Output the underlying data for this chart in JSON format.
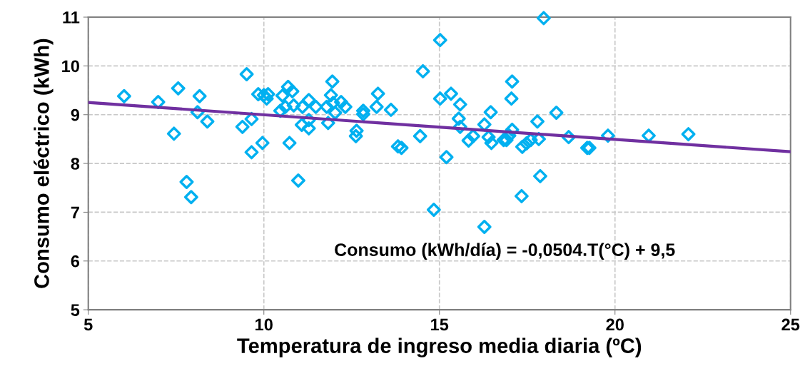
{
  "chart_data": {
    "type": "scatter",
    "xlabel": "Temperatura de ingreso media diaria (ºC)",
    "ylabel": "Consumo eléctrico (kWh)",
    "xlim": [
      5,
      25
    ],
    "xticks": [
      5,
      10,
      15,
      20,
      25
    ],
    "ylim": [
      5,
      11
    ],
    "yticks": [
      5,
      6,
      7,
      8,
      9,
      10,
      11
    ],
    "grid": true,
    "legend": false,
    "annotations": [
      "Consumo (kWh/día) = -0,0504.T(°C) + 9,5"
    ],
    "series": [
      {
        "color": "#00b0f0",
        "marker": "diamond",
        "x": [
          6.02,
          6.99,
          7.56,
          7.44,
          7.8,
          7.93,
          8.17,
          8.11,
          8.39,
          9.51,
          9.39,
          9.65,
          9.65,
          9.84,
          9.96,
          10.0,
          10.08,
          10.12,
          10.47,
          10.53,
          10.69,
          10.61,
          10.81,
          10.73,
          10.85,
          10.98,
          11.08,
          11.1,
          11.28,
          11.28,
          11.28,
          11.48,
          11.79,
          11.83,
          11.91,
          11.95,
          11.97,
          12.03,
          12.2,
          12.32,
          12.64,
          12.62,
          12.83,
          12.83,
          13.21,
          13.25,
          13.62,
          13.82,
          13.92,
          14.53,
          14.45,
          14.84,
          15.02,
          15.02,
          15.2,
          15.33,
          15.59,
          15.55,
          15.59,
          15.83,
          15.96,
          16.46,
          16.28,
          16.4,
          16.48,
          16.28,
          16.83,
          16.91,
          16.99,
          17.05,
          17.07,
          17.07,
          17.34,
          17.36,
          17.48,
          17.6,
          17.83,
          17.79,
          17.87,
          17.97,
          18.33,
          18.68,
          19.21,
          19.27,
          19.8,
          20.96,
          22.09
        ],
        "values": [
          9.38,
          9.26,
          9.54,
          8.61,
          7.62,
          7.31,
          9.38,
          9.05,
          8.86,
          9.83,
          8.75,
          8.91,
          8.23,
          9.42,
          8.42,
          9.4,
          9.33,
          9.42,
          9.08,
          9.39,
          9.57,
          9.16,
          9.48,
          8.42,
          9.19,
          7.65,
          8.79,
          9.16,
          8.72,
          8.89,
          9.3,
          9.16,
          9.16,
          8.83,
          9.4,
          9.68,
          9.24,
          9.04,
          9.26,
          9.16,
          8.67,
          8.56,
          9.08,
          9.01,
          9.16,
          9.43,
          9.1,
          8.35,
          8.32,
          9.89,
          8.56,
          7.05,
          10.53,
          9.33,
          8.13,
          9.43,
          9.21,
          8.92,
          8.75,
          8.47,
          8.56,
          9.05,
          8.8,
          8.54,
          8.42,
          6.7,
          8.48,
          8.48,
          8.57,
          9.33,
          9.68,
          8.69,
          7.33,
          8.34,
          8.41,
          8.48,
          8.5,
          8.86,
          7.74,
          10.98,
          9.04,
          8.54,
          8.32,
          8.32,
          8.57,
          8.57,
          8.6
        ]
      },
      {
        "type": "line",
        "color": "#7030a0",
        "marker": "none",
        "line_style": "solid",
        "x": [
          5,
          25
        ],
        "values": [
          9.25,
          8.24
        ]
      }
    ]
  }
}
